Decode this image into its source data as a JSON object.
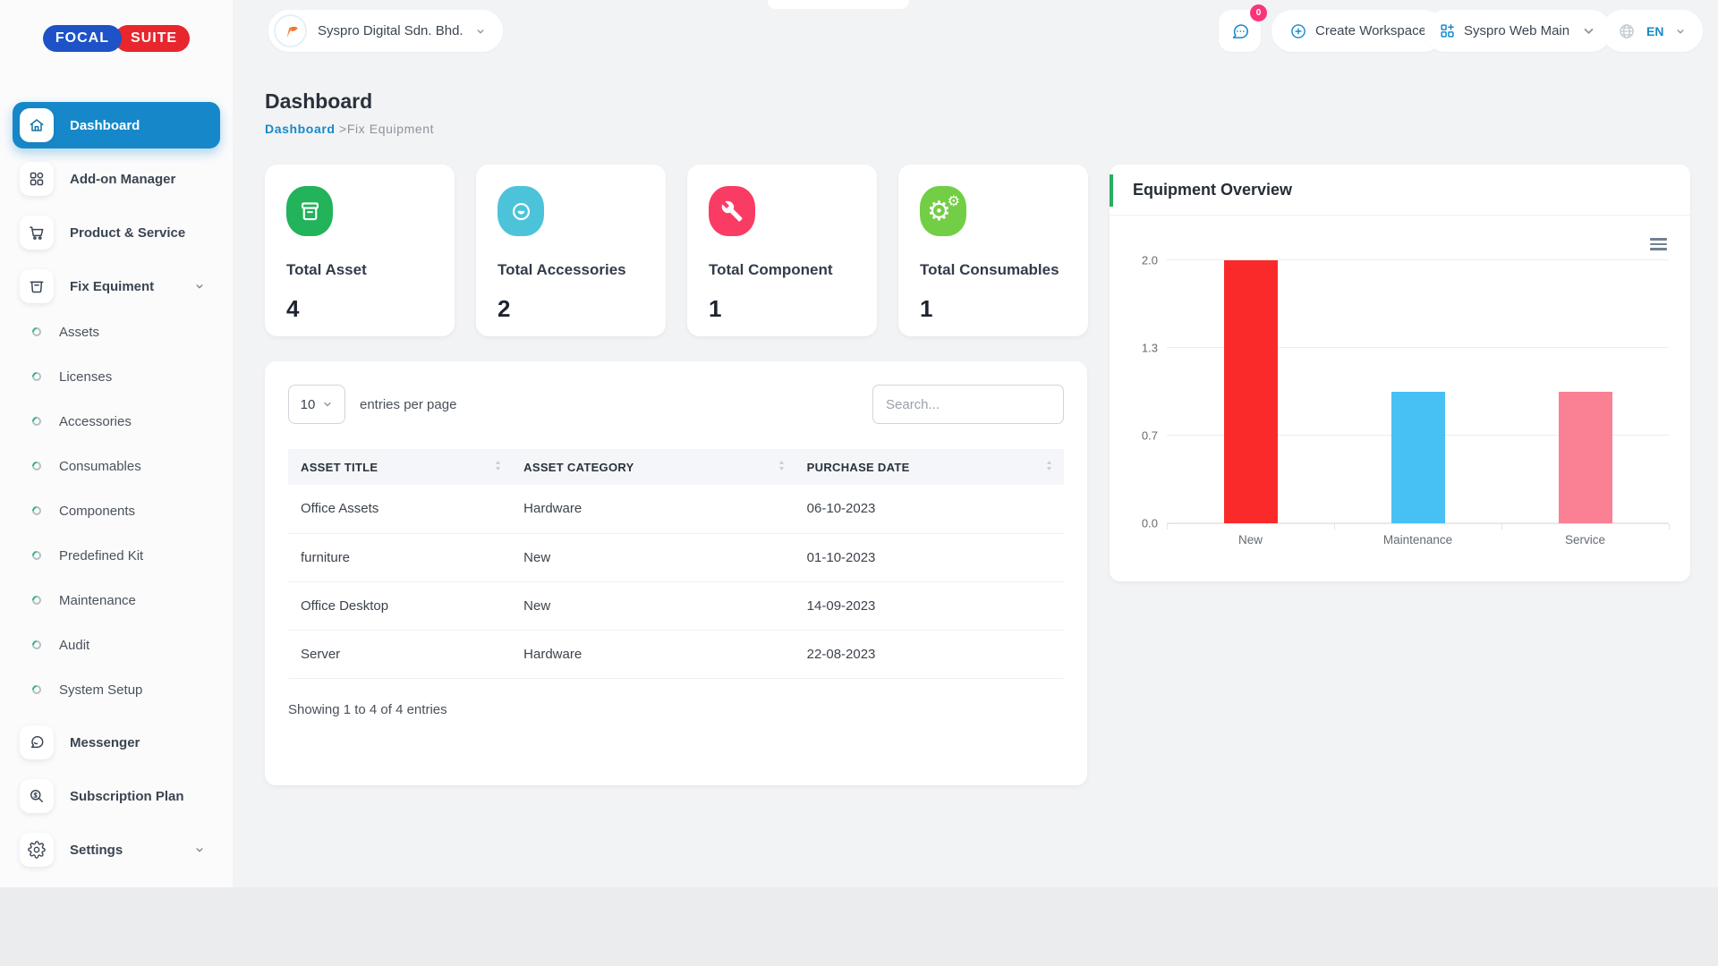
{
  "brand": {
    "focal": "FOCAL",
    "suite": "SUITE"
  },
  "topbar": {
    "company": "Syspro Digital Sdn. Bhd.",
    "chat_badge": "0",
    "create_workspace": "Create Workspace",
    "workspace": "Syspro Web Main",
    "language": "EN"
  },
  "sidebar": {
    "items": [
      {
        "label": "Dashboard",
        "icon": "home-icon",
        "type": "main",
        "active": true
      },
      {
        "label": "Add-on Manager",
        "icon": "addon-grid-icon",
        "type": "main"
      },
      {
        "label": "Product & Service",
        "icon": "cart-icon",
        "type": "main"
      },
      {
        "label": "Fix Equiment",
        "icon": "storage-box-icon",
        "type": "main",
        "chevron": true
      },
      {
        "label": "Assets",
        "type": "sub"
      },
      {
        "label": "Licenses",
        "type": "sub"
      },
      {
        "label": "Accessories",
        "type": "sub"
      },
      {
        "label": "Consumables",
        "type": "sub"
      },
      {
        "label": "Components",
        "type": "sub"
      },
      {
        "label": "Predefined Kit",
        "type": "sub"
      },
      {
        "label": "Maintenance",
        "type": "sub"
      },
      {
        "label": "Audit",
        "type": "sub"
      },
      {
        "label": "System Setup",
        "type": "sub"
      },
      {
        "label": "Messenger",
        "icon": "chat-bubble-icon",
        "type": "main"
      },
      {
        "label": "Subscription Plan",
        "icon": "search-dollar-icon",
        "type": "main"
      },
      {
        "label": "Settings",
        "icon": "gear-icon",
        "type": "main",
        "chevron": true
      }
    ]
  },
  "page": {
    "title": "Dashboard",
    "breadcrumb": {
      "home": "Dashboard",
      "separator": ">",
      "current": "Fix Equipment"
    }
  },
  "stats": [
    {
      "label": "Total Asset",
      "value": "4",
      "icon": "archive-box-icon",
      "color": "#22b35b"
    },
    {
      "label": "Total Accessories",
      "value": "2",
      "icon": "disc-icon",
      "color": "#4dc3da"
    },
    {
      "label": "Total Component",
      "value": "1",
      "icon": "wrench-icon",
      "color": "#fa3c64"
    },
    {
      "label": "Total Consumables",
      "value": "1",
      "icon": "gears-icon",
      "color": "#72ce44"
    }
  ],
  "table": {
    "entries_per_page": "10",
    "entries_label": "entries per page",
    "search_placeholder": "Search...",
    "columns": [
      "ASSET TITLE",
      "ASSET CATEGORY",
      "PURCHASE DATE"
    ],
    "rows": [
      {
        "title": "Office Assets",
        "category": "Hardware",
        "date": "06-10-2023"
      },
      {
        "title": "furniture",
        "category": "New",
        "date": "01-10-2023"
      },
      {
        "title": "Office Desktop",
        "category": "New",
        "date": "14-09-2023"
      },
      {
        "title": "Server",
        "category": "Hardware",
        "date": "22-08-2023"
      }
    ],
    "footer": "Showing 1 to 4 of 4 entries"
  },
  "chart_data": {
    "type": "bar",
    "title": "Equipment Overview",
    "categories": [
      "New",
      "Maintenance",
      "Service"
    ],
    "values": [
      2,
      1,
      1
    ],
    "bar_colors": [
      "#fb2a2a",
      "#47c1f4",
      "#fa8093"
    ],
    "ylim": [
      0,
      2
    ],
    "yticks_bottom_up": [
      "0.0",
      "0.7",
      "1.3",
      "2.0"
    ],
    "grid": true,
    "legend": "none",
    "accent_color": "#27ae60"
  }
}
